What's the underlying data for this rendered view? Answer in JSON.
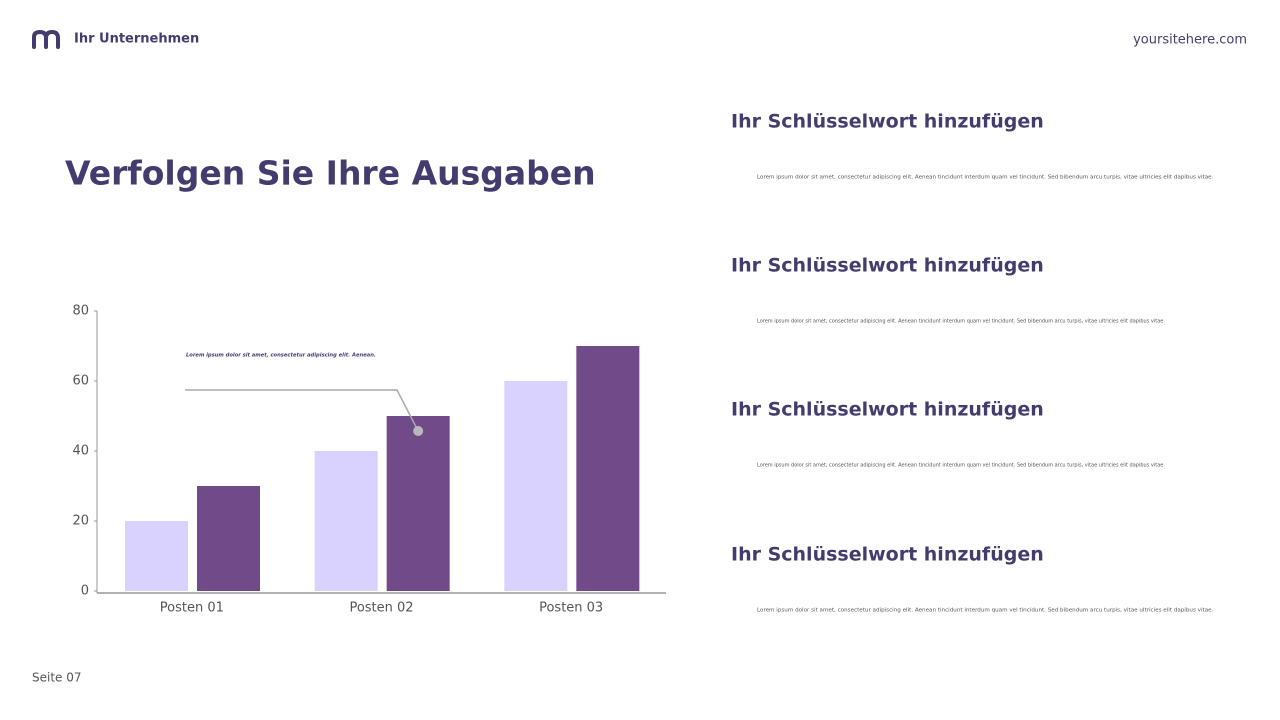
{
  "header": {
    "company": "Ihr Unternehmen",
    "site": "yoursitehere.com"
  },
  "title": "Verfolgen Sie Ihre Ausgaben",
  "chart_data": {
    "type": "bar",
    "categories": [
      "Posten 01",
      "Posten 02",
      "Posten 03"
    ],
    "series": [
      {
        "color": "#d9d2ff",
        "values": [
          20,
          40,
          60
        ]
      },
      {
        "color": "#714a8a",
        "values": [
          30,
          50,
          70
        ]
      }
    ],
    "ylim": [
      0,
      80
    ],
    "yticks": [
      0,
      20,
      40,
      60,
      80
    ],
    "annotation": "Lorem ipsum dolor sit amet, consectetur adipiscing elit. Aenean."
  },
  "items": [
    {
      "heading": "Ihr Schlüsselwort hinzufügen",
      "text": "Lorem ipsum dolor sit amet, consectetur adipiscing elit. Aenean tincidunt interdum quam vel tincidunt. Sed bibendum arcu turpis, vitae ultricies elit dapibus vitae."
    },
    {
      "heading": "Ihr Schlüsselwort hinzufügen",
      "text": "Lorem ipsum dolor sit amet, consectetur adipiscing elit. Aenean tincidunt interdum quam vel tincidunt. Sed bibendum arcu turpis, vitae ultricies elit dapibus vitae."
    },
    {
      "heading": "Ihr Schlüsselwort hinzufügen",
      "text": "Lorem ipsum dolor sit amet, consectetur adipiscing elit. Aenean tincidunt interdum quam vel tincidunt. Sed bibendum arcu turpis, vitae ultricies elit dapibus vitae."
    },
    {
      "heading": "Ihr Schlüsselwort hinzufügen",
      "text": "Lorem ipsum dolor sit amet, consectetur adipiscing elit. Aenean tincidunt interdum quam vel tincidunt. Sed bibendum arcu turpis, vitae ultricies elit dapibus vitae."
    }
  ],
  "footer": "Seite 07"
}
